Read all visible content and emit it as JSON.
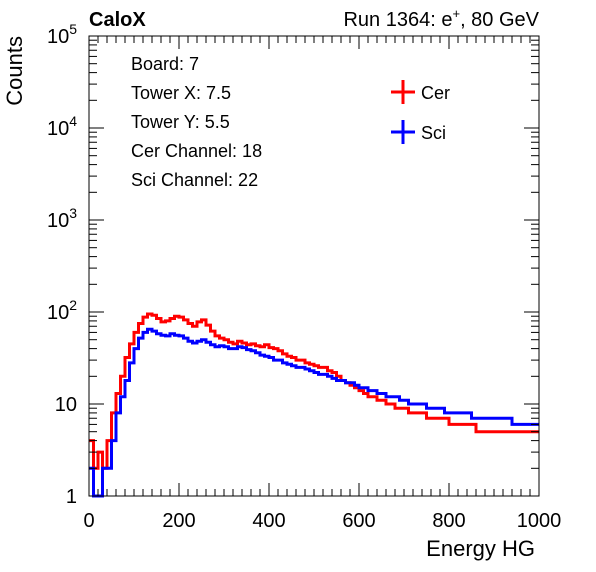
{
  "header": {
    "left": "CaloX",
    "right_prefix": "Run 1364: e",
    "right_sup": "+",
    "right_suffix": ", 80 GeV"
  },
  "info_box": {
    "lines": [
      "Board: 7",
      "Tower X: 7.5",
      "Tower Y: 5.5",
      "Cer Channel: 18",
      "Sci Channel: 22"
    ]
  },
  "chart_data": {
    "type": "line",
    "xlabel": "Energy HG",
    "ylabel": "Counts",
    "xlim": [
      0,
      1000
    ],
    "ylim": [
      1,
      100000
    ],
    "yscale": "log",
    "x_ticks": [
      "0",
      "200",
      "400",
      "600",
      "800",
      "1000"
    ],
    "y_ticks": [
      {
        "value": 1,
        "label": "1",
        "sup": ""
      },
      {
        "value": 10,
        "label": "10",
        "sup": ""
      },
      {
        "value": 100,
        "label": "10",
        "sup": "2"
      },
      {
        "value": 1000,
        "label": "10",
        "sup": "3"
      },
      {
        "value": 10000,
        "label": "10",
        "sup": "4"
      },
      {
        "value": 100000,
        "label": "10",
        "sup": "5"
      }
    ],
    "grid": false,
    "legend_position": "top-right",
    "x": [
      0,
      10,
      20,
      30,
      40,
      50,
      60,
      70,
      80,
      90,
      100,
      110,
      120,
      130,
      140,
      150,
      160,
      170,
      180,
      190,
      200,
      210,
      220,
      230,
      240,
      250,
      260,
      270,
      280,
      290,
      300,
      310,
      320,
      330,
      340,
      350,
      360,
      370,
      380,
      390,
      400,
      410,
      420,
      430,
      440,
      450,
      460,
      470,
      480,
      490,
      500,
      510,
      520,
      530,
      540,
      550,
      560,
      570,
      580,
      590,
      600,
      610,
      620,
      630,
      640,
      650,
      660,
      670,
      680,
      690,
      700,
      710,
      720,
      730,
      740,
      750,
      760,
      770,
      780,
      790,
      800,
      810,
      820,
      830,
      840,
      850,
      860,
      870,
      880,
      890,
      900,
      910,
      920,
      930,
      940,
      950,
      960,
      970,
      980,
      990
    ],
    "series": [
      {
        "name": "Cer",
        "color": "#ff0000",
        "values": [
          4,
          2,
          3,
          2,
          4,
          8,
          13,
          20,
          32,
          45,
          60,
          75,
          88,
          95,
          92,
          85,
          78,
          80,
          85,
          90,
          88,
          82,
          75,
          70,
          78,
          82,
          72,
          62,
          55,
          52,
          50,
          47,
          45,
          48,
          46,
          44,
          45,
          43,
          42,
          44,
          41,
          40,
          38,
          35,
          33,
          32,
          30,
          30,
          28,
          27,
          26,
          25,
          25,
          23,
          22,
          20,
          18,
          17,
          16,
          15,
          14,
          13,
          12,
          12,
          11,
          11,
          10,
          10,
          9,
          9,
          9,
          8,
          8,
          8,
          8,
          7,
          7,
          7,
          7,
          7,
          6,
          6,
          6,
          6,
          6,
          6,
          5,
          5,
          5,
          5,
          5,
          5,
          5,
          5,
          5,
          5,
          5,
          5,
          5,
          5
        ]
      },
      {
        "name": "Sci",
        "color": "#0000ff",
        "values": [
          2,
          1,
          1,
          2,
          2,
          4,
          8,
          12,
          18,
          28,
          40,
          52,
          60,
          65,
          62,
          58,
          56,
          55,
          58,
          56,
          55,
          52,
          48,
          46,
          48,
          50,
          47,
          44,
          42,
          43,
          42,
          40,
          40,
          42,
          41,
          39,
          38,
          36,
          34,
          33,
          32,
          30,
          30,
          28,
          27,
          26,
          25,
          25,
          24,
          23,
          22,
          21,
          21,
          20,
          19,
          18,
          18,
          17,
          17,
          16,
          15,
          15,
          14,
          14,
          13,
          13,
          12,
          12,
          12,
          11,
          11,
          10,
          10,
          10,
          10,
          9,
          9,
          9,
          9,
          8,
          8,
          8,
          8,
          8,
          8,
          7,
          7,
          7,
          7,
          7,
          7,
          7,
          7,
          7,
          6,
          6,
          6,
          6,
          6,
          6
        ]
      }
    ]
  }
}
